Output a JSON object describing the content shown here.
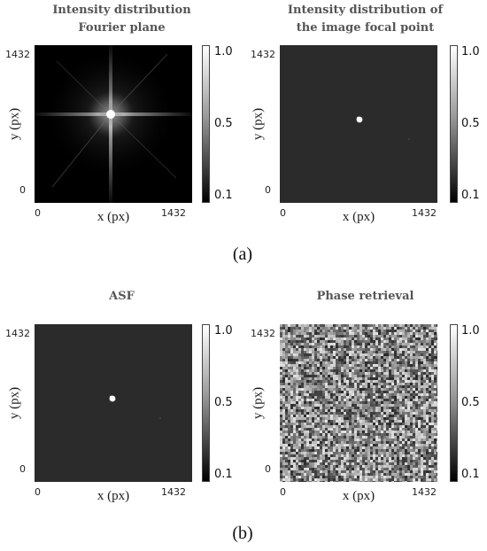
{
  "figure": {
    "panels": [
      {
        "title_lines": [
          "Intensity distribution",
          "Fourier plane"
        ],
        "kind": "fourier"
      },
      {
        "title_lines": [
          "Intensity distribution of",
          "the image focal point"
        ],
        "kind": "spot"
      },
      {
        "title_lines": [
          "ASF",
          ""
        ],
        "kind": "spot"
      },
      {
        "title_lines": [
          "Phase retrieval",
          ""
        ],
        "kind": "noise"
      }
    ],
    "axis": {
      "ylabel": "y (px)",
      "xlabel": "x (px)",
      "ytick_top": "1432",
      "ytick_bottom": "0",
      "xtick_left": "0",
      "xtick_right": "1432"
    },
    "colorbar": {
      "ticks": [
        "1.0",
        "0.5",
        "0.1"
      ],
      "values": [
        1.0,
        0.5,
        0.1
      ]
    },
    "captions": [
      "(a)",
      "(b)"
    ]
  }
}
